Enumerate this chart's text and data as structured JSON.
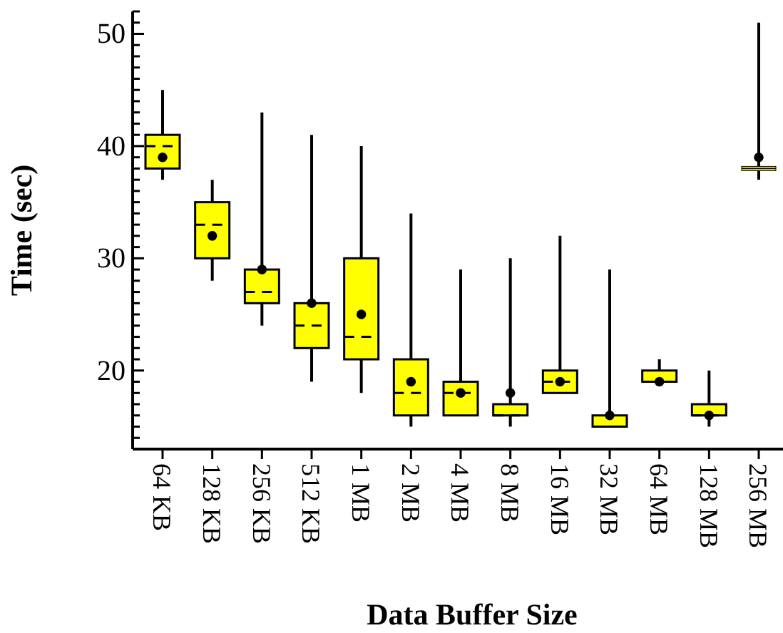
{
  "chart_data": {
    "type": "box",
    "xlabel": "Data Buffer Size",
    "ylabel": "Time (sec)",
    "categories": [
      "64 KB",
      "128 KB",
      "256 KB",
      "512 KB",
      "1 MB",
      "2 MB",
      "4 MB",
      "8 MB",
      "16 MB",
      "32 MB",
      "64 MB",
      "128 MB",
      "256 MB"
    ],
    "color": "#ffff00",
    "marker": "circle",
    "boxes": [
      {
        "low": 37,
        "q1": 38,
        "median": 40,
        "q3": 41,
        "high": 45,
        "mean": 39
      },
      {
        "low": 28,
        "q1": 30,
        "median": 33,
        "q3": 35,
        "high": 37,
        "mean": 32
      },
      {
        "low": 24,
        "q1": 26,
        "median": 27,
        "q3": 29,
        "high": 43,
        "mean": 29
      },
      {
        "low": 19,
        "q1": 22,
        "median": 24,
        "q3": 26,
        "high": 41,
        "mean": 26
      },
      {
        "low": 18,
        "q1": 21,
        "median": 23,
        "q3": 30,
        "high": 40,
        "mean": 25
      },
      {
        "low": 15,
        "q1": 16,
        "median": 18,
        "q3": 21,
        "high": 34,
        "mean": 19
      },
      {
        "low": 16,
        "q1": 16,
        "median": 18,
        "q3": 19,
        "high": 29,
        "mean": 18
      },
      {
        "low": 15,
        "q1": 16,
        "median": 16,
        "q3": 17,
        "high": 30,
        "mean": 18
      },
      {
        "low": 18,
        "q1": 18,
        "median": 19,
        "q3": 20,
        "high": 32,
        "mean": 19
      },
      {
        "low": 15,
        "q1": 15,
        "median": 15,
        "q3": 16,
        "high": 29,
        "mean": 16
      },
      {
        "low": 19,
        "q1": 19,
        "median": 19,
        "q3": 20,
        "high": 21,
        "mean": 19
      },
      {
        "low": 15,
        "q1": 16,
        "median": 16,
        "q3": 17,
        "high": 20,
        "mean": 16
      },
      {
        "low": 37,
        "q1": 38,
        "median": 38,
        "q3": 38,
        "high": 51,
        "mean": 39
      }
    ],
    "ylim": [
      13,
      52
    ],
    "yticks": [
      {
        "value": 14,
        "label": null
      },
      {
        "value": 15,
        "label": null
      },
      {
        "value": 16,
        "label": null
      },
      {
        "value": 17,
        "label": null
      },
      {
        "value": 18,
        "label": null
      },
      {
        "value": 19,
        "label": null
      },
      20,
      {
        "value": 21,
        "label": null
      },
      {
        "value": 22,
        "label": null
      },
      {
        "value": 23,
        "label": null
      },
      {
        "value": 24,
        "label": null
      },
      {
        "value": 25,
        "label": null
      },
      {
        "value": 26,
        "label": null
      },
      {
        "value": 27,
        "label": null
      },
      {
        "value": 28,
        "label": null
      },
      {
        "value": 29,
        "label": null
      },
      30,
      {
        "value": 31,
        "label": null
      },
      {
        "value": 32,
        "label": null
      },
      {
        "value": 33,
        "label": null
      },
      {
        "value": 34,
        "label": null
      },
      {
        "value": 35,
        "label": null
      },
      {
        "value": 36,
        "label": null
      },
      {
        "value": 37,
        "label": null
      },
      {
        "value": 38,
        "label": null
      },
      {
        "value": 39,
        "label": null
      },
      40,
      {
        "value": 41,
        "label": null
      },
      {
        "value": 42,
        "label": null
      },
      {
        "value": 43,
        "label": null
      },
      {
        "value": 44,
        "label": null
      },
      {
        "value": 45,
        "label": null
      },
      {
        "value": 46,
        "label": null
      },
      {
        "value": 47,
        "label": null
      },
      {
        "value": 48,
        "label": null
      },
      {
        "value": 49,
        "label": null
      },
      50,
      {
        "value": 51,
        "label": null
      },
      {
        "value": 52,
        "label": null
      }
    ]
  }
}
